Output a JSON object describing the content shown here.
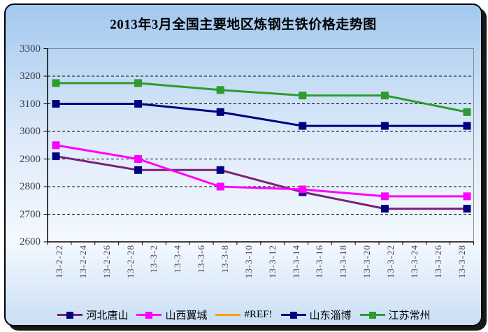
{
  "chart_data": {
    "type": "line",
    "title": "2013年3月全国主要地区炼钢生铁价格走势图",
    "x_tick_labels": [
      "13-2-22",
      "13-2-24",
      "13-2-26",
      "13-2-28",
      "13-3-2",
      "13-3-4",
      "13-3-6",
      "13-3-8",
      "13-3-10",
      "13-3-12",
      "13-3-14",
      "13-3-16",
      "13-3-18",
      "13-3-20",
      "13-3-22",
      "13-3-24",
      "13-3-26",
      "13-3-28"
    ],
    "ylim": [
      2600,
      3300
    ],
    "yticks": [
      2600,
      2700,
      2800,
      2900,
      3000,
      3100,
      3200,
      3300
    ],
    "grid": "horizontal-dashed",
    "legend_position": "bottom",
    "points_per_series": 6,
    "series": [
      {
        "name": "河北唐山",
        "line_color": "#7A2275",
        "marker_color": "#000080",
        "values": [
          2910,
          2860,
          2860,
          2780,
          2720,
          2720
        ]
      },
      {
        "name": "山西翼城",
        "line_color": "#FF00FF",
        "marker_color": "#FF00FF",
        "values": [
          2950,
          2900,
          2800,
          2790,
          2765,
          2765
        ]
      },
      {
        "name": "#REF!",
        "line_color": "#FFA000",
        "marker_color": null,
        "values": []
      },
      {
        "name": "山东淄博",
        "line_color": "#000080",
        "marker_color": "#000080",
        "values": [
          3100,
          3100,
          3070,
          3020,
          3020,
          3020
        ]
      },
      {
        "name": "江苏常州",
        "line_color": "#2E9B2E",
        "marker_color": "#2E9B2E",
        "values": [
          3175,
          3175,
          3150,
          3130,
          3130,
          3070
        ]
      }
    ]
  },
  "colors": {
    "card_border": "#000000",
    "plot_border": "#8A8A8A",
    "axis": "#000000",
    "gridline": "#000000",
    "y_label": "#3A3A4C",
    "x_label": "#4C4168",
    "background_top": "#A2C8EF",
    "background_bottom": "#C9DFF5"
  }
}
